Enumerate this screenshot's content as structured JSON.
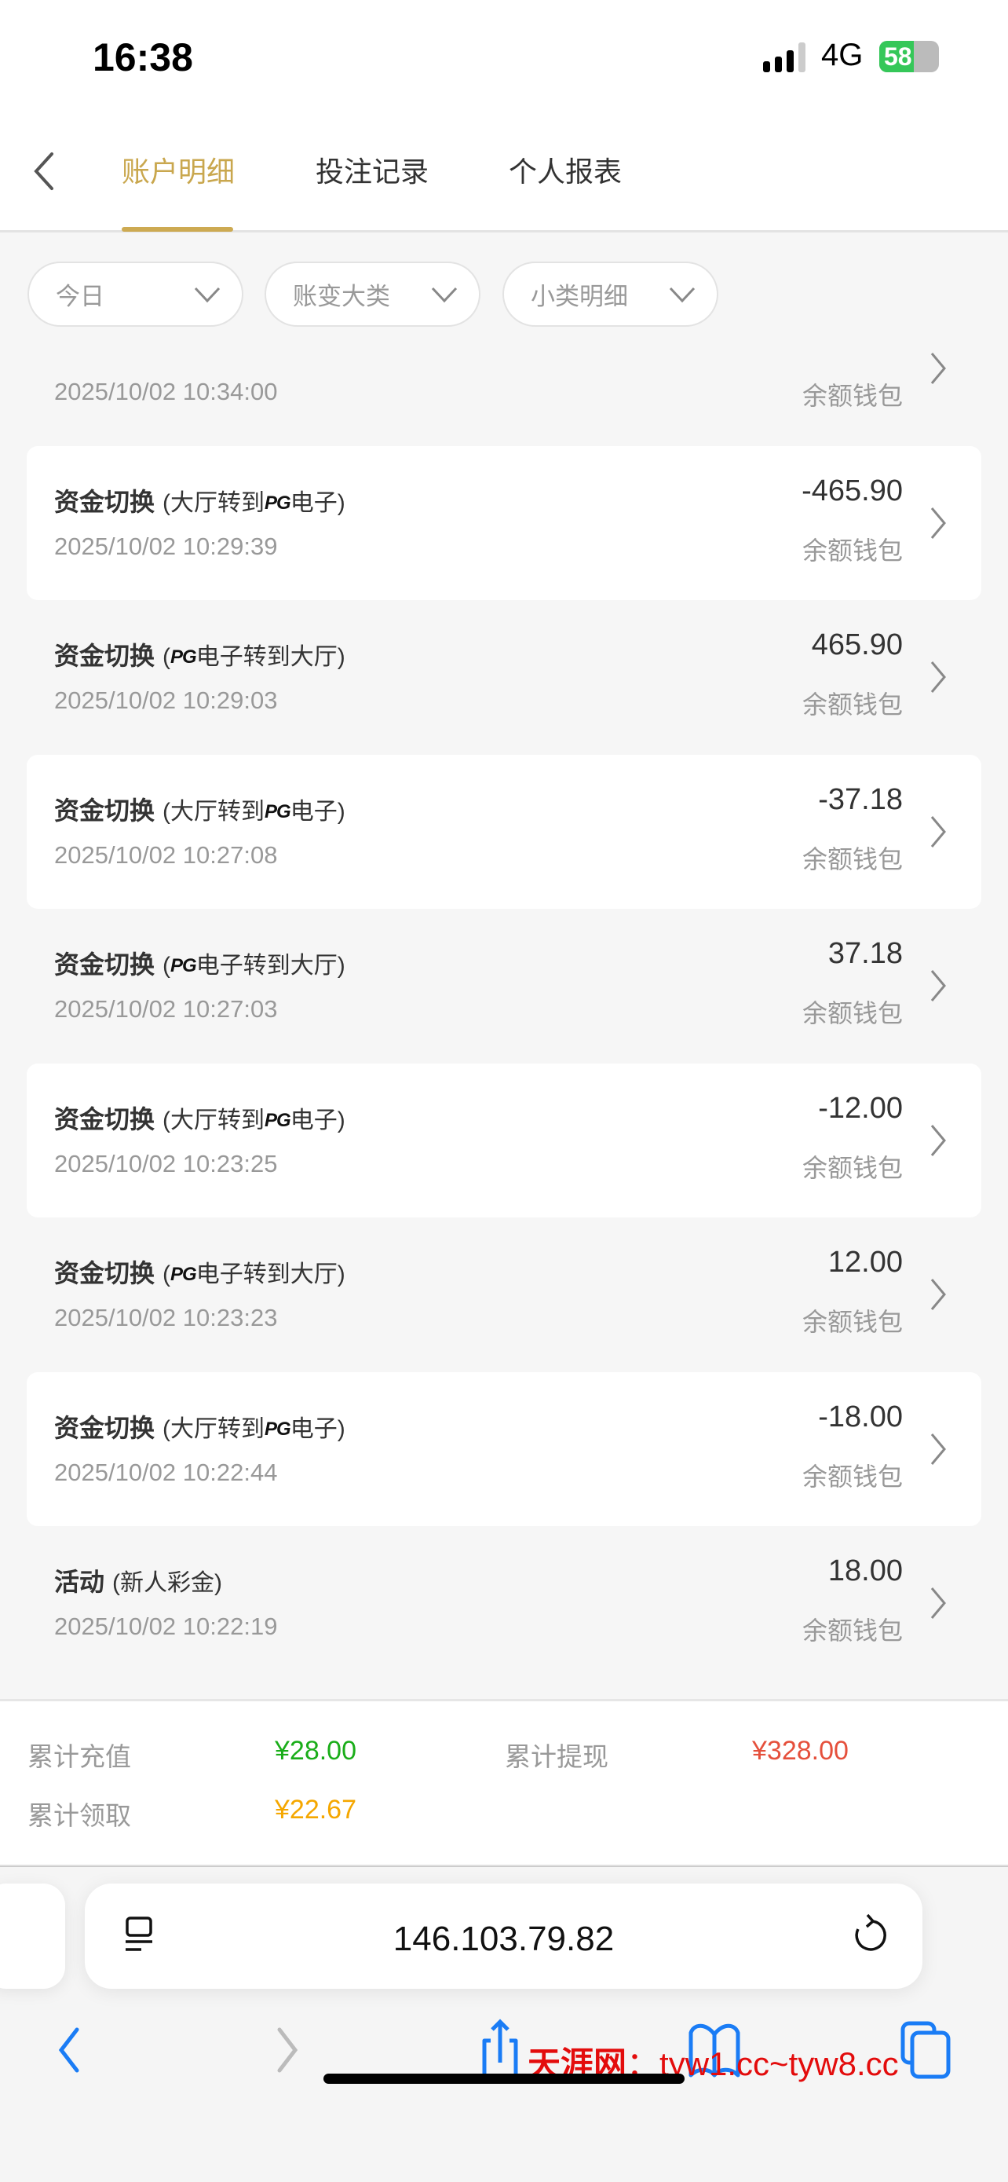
{
  "status_bar": {
    "time": "16:38",
    "network": "4G",
    "battery": "58",
    "battery_level": 0.58
  },
  "header": {
    "tabs": [
      {
        "label": "账户明细",
        "active": true
      },
      {
        "label": "投注记录",
        "active": false
      },
      {
        "label": "个人报表",
        "active": false
      }
    ]
  },
  "filters": [
    {
      "label": "今日"
    },
    {
      "label": "账变大类"
    },
    {
      "label": "小类明细"
    }
  ],
  "colors": {
    "accent": "#c9a74e",
    "green": "#1aad19",
    "red": "#e5503c",
    "orange": "#f5a700",
    "link_blue": "#1a7cf5"
  },
  "records": [
    {
      "title": "",
      "sub": "",
      "amount": "",
      "date": "2025/10/02 10:34:00",
      "wallet": "余额钱包",
      "card": false
    },
    {
      "title": "资金切换",
      "sub_pre": "(大厅转到",
      "pg": "PG",
      "sub_post": "电子)",
      "amount": "-465.90",
      "date": "2025/10/02 10:29:39",
      "wallet": "余额钱包",
      "card": true
    },
    {
      "title": "资金切换",
      "sub_pre": "(",
      "pg": "PG",
      "sub_post": "电子转到大厅)",
      "amount": "465.90",
      "date": "2025/10/02 10:29:03",
      "wallet": "余额钱包",
      "card": false
    },
    {
      "title": "资金切换",
      "sub_pre": "(大厅转到",
      "pg": "PG",
      "sub_post": "电子)",
      "amount": "-37.18",
      "date": "2025/10/02 10:27:08",
      "wallet": "余额钱包",
      "card": true
    },
    {
      "title": "资金切换",
      "sub_pre": "(",
      "pg": "PG",
      "sub_post": "电子转到大厅)",
      "amount": "37.18",
      "date": "2025/10/02 10:27:03",
      "wallet": "余额钱包",
      "card": false
    },
    {
      "title": "资金切换",
      "sub_pre": "(大厅转到",
      "pg": "PG",
      "sub_post": "电子)",
      "amount": "-12.00",
      "date": "2025/10/02 10:23:25",
      "wallet": "余额钱包",
      "card": true
    },
    {
      "title": "资金切换",
      "sub_pre": "(",
      "pg": "PG",
      "sub_post": "电子转到大厅)",
      "amount": "12.00",
      "date": "2025/10/02 10:23:23",
      "wallet": "余额钱包",
      "card": false
    },
    {
      "title": "资金切换",
      "sub_pre": "(大厅转到",
      "pg": "PG",
      "sub_post": "电子)",
      "amount": "-18.00",
      "date": "2025/10/02 10:22:44",
      "wallet": "余额钱包",
      "card": true
    },
    {
      "title": "活动",
      "sub_pre": "(新人彩金)",
      "pg": "",
      "sub_post": "",
      "amount": "18.00",
      "date": "2025/10/02 10:22:19",
      "wallet": "余额钱包",
      "card": false
    }
  ],
  "summary": {
    "recharge_label": "累计充值",
    "recharge_value": "¥28.00",
    "withdraw_label": "累计提现",
    "withdraw_value": "¥328.00",
    "claim_label": "累计领取",
    "claim_value": "¥22.67"
  },
  "browser": {
    "url": "146.103.79.82"
  },
  "watermark": {
    "brand": "天涯网",
    "sep": "：",
    "text": "tyw1.cc~tyw8.cc"
  }
}
